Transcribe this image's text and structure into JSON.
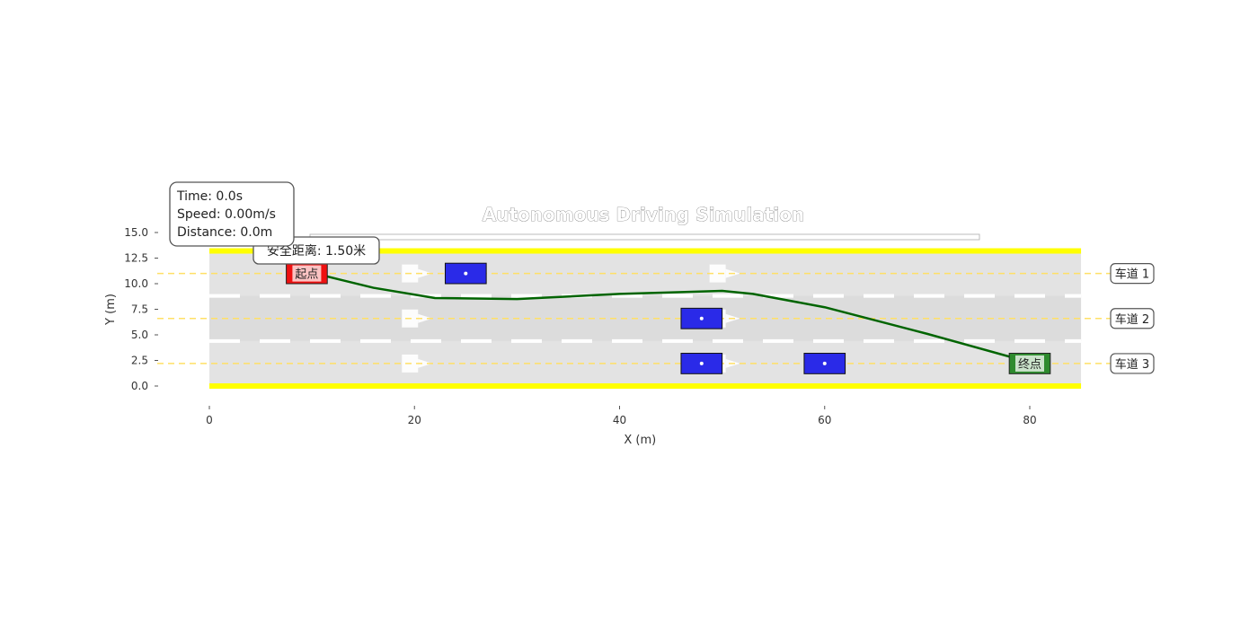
{
  "chart_data": {
    "type": "scatter",
    "title": "Autonomous Driving Simulation",
    "xlabel": "X (m)",
    "ylabel": "Y (m)",
    "xlim": [
      -5,
      90
    ],
    "ylim": [
      -1,
      16.5
    ],
    "x_ticks": [
      0,
      20,
      40,
      60,
      80
    ],
    "x_tick_labels": [
      "0",
      "20",
      "40",
      "60",
      "80"
    ],
    "y_ticks": [
      0,
      2.5,
      5,
      7.5,
      10,
      12.5,
      15
    ],
    "y_tick_labels": [
      "0.0",
      "2.5",
      "5.0",
      "7.5",
      "10.0",
      "12.5",
      "15.0"
    ],
    "road": {
      "x_start": 0,
      "x_end": 85,
      "y_bottom": 0,
      "y_top": 13.2,
      "lane_dividers": [
        4.4,
        8.8
      ]
    },
    "lanes": [
      {
        "label": "车道 1",
        "center_y": 11.0
      },
      {
        "label": "车道 2",
        "center_y": 6.6
      },
      {
        "label": "车道 3",
        "center_y": 2.2
      }
    ],
    "vehicles": [
      {
        "x": 25,
        "y": 11.0,
        "length": 4,
        "width": 2
      },
      {
        "x": 48,
        "y": 6.6,
        "length": 4,
        "width": 2
      },
      {
        "x": 48,
        "y": 2.2,
        "length": 4,
        "width": 2
      },
      {
        "x": 60,
        "y": 2.2,
        "length": 4,
        "width": 2
      }
    ],
    "start": {
      "label": "起点",
      "x": 9.5,
      "y": 11.0,
      "color": "#ee1111"
    },
    "end": {
      "label": "终点",
      "x": 80,
      "y": 2.2,
      "color": "#2e8b2e"
    },
    "path": {
      "color": "#006400",
      "points": [
        [
          11.5,
          10.7
        ],
        [
          16,
          9.6
        ],
        [
          22,
          8.6
        ],
        [
          30,
          8.5
        ],
        [
          40,
          9.0
        ],
        [
          50,
          9.3
        ],
        [
          53,
          9.0
        ],
        [
          60,
          7.7
        ],
        [
          70,
          5.1
        ],
        [
          79,
          2.6
        ]
      ]
    },
    "safety_annotation": {
      "label": "安全距离: 1.50米",
      "x": 12,
      "y": 13.3
    },
    "info_box": {
      "lines": [
        "Time: 0.0s",
        "Speed: 0.00m/s",
        "Distance: 0.0m"
      ]
    },
    "colors": {
      "road": "#e3e3e3",
      "road_edge": "#ffff00",
      "lane_center": "#ffe066",
      "lane_divider": "#ffffff",
      "vehicle": "#2a2ae8"
    }
  }
}
